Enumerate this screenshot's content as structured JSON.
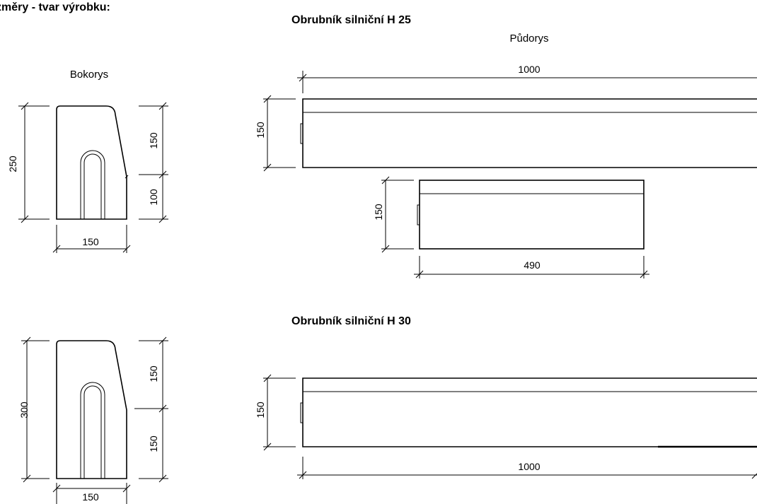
{
  "page": {
    "section_title": "změry - tvar výrobku:"
  },
  "h25": {
    "title": "Obrubník silniční H 25",
    "plan_label": "Půdorys",
    "side_label": "Bokorys",
    "side_dims": {
      "total_height": "250",
      "upper": "150",
      "lower": "100",
      "width": "150"
    },
    "plan_dims": {
      "length": "1000",
      "width": "150",
      "short_width": "150",
      "short_length": "490"
    }
  },
  "h30": {
    "title": "Obrubník silniční H 30",
    "side_dims": {
      "total_height": "300",
      "upper": "150",
      "lower": "150",
      "width": "150"
    },
    "plan_dims": {
      "width": "150",
      "length": "1000"
    }
  }
}
